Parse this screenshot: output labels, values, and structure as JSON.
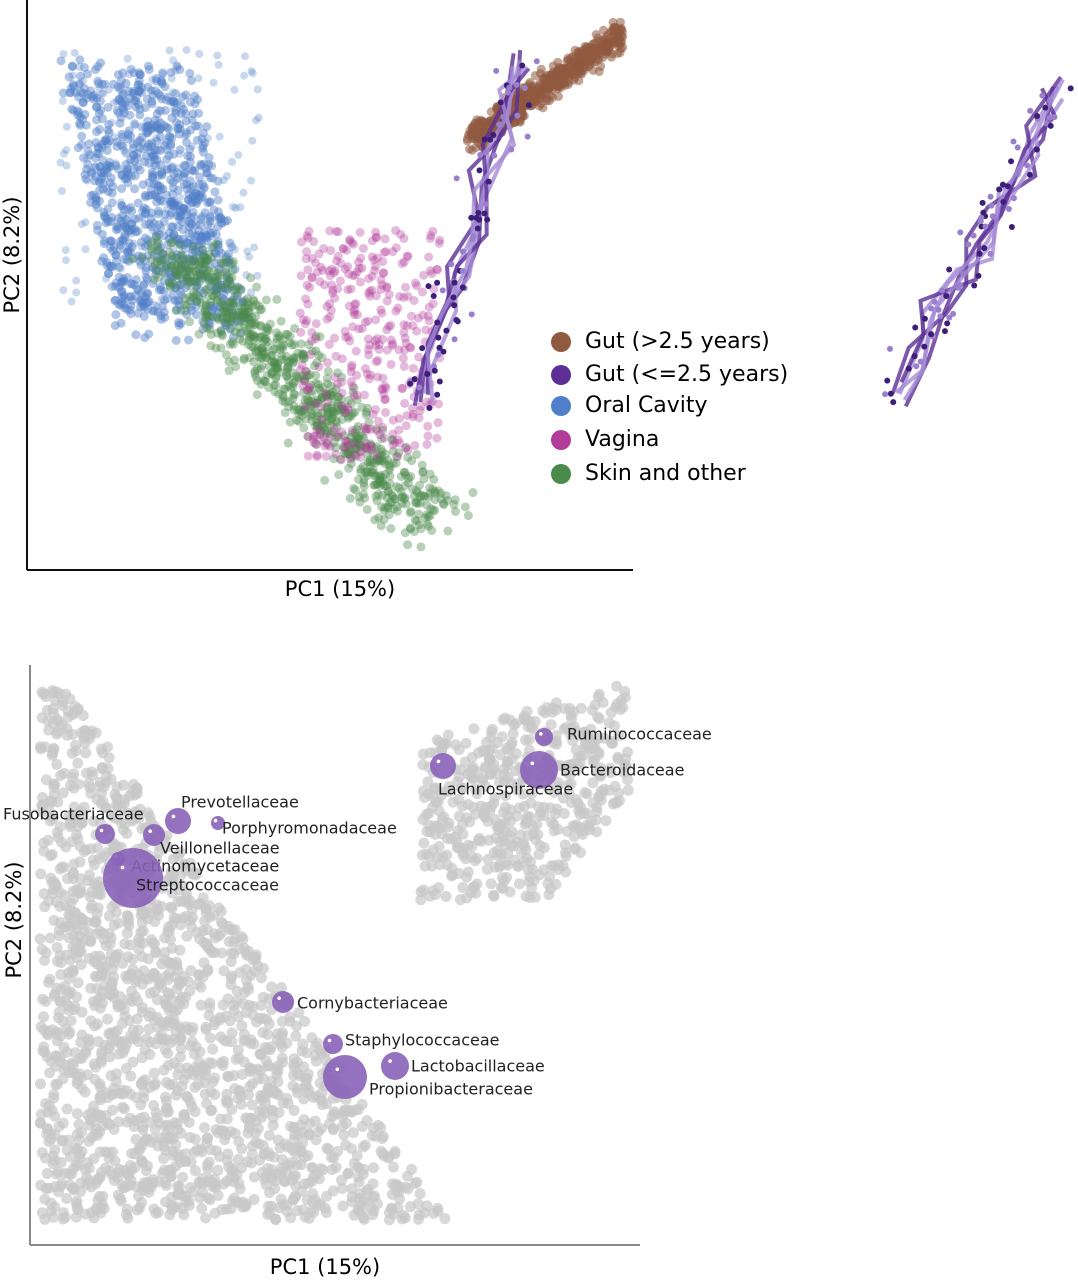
{
  "chart_data": [
    {
      "type": "scatter",
      "x_label": "PC1 (15%)",
      "y_label": "PC2 (8.2%)",
      "series": [
        {
          "name": "Gut (>2.5 years)",
          "color": "#8f5a3f"
        },
        {
          "name": "Gut (<=2.5 years)",
          "color": "#5b2f96"
        },
        {
          "name": "Oral Cavity",
          "color": "#4f7fc8"
        },
        {
          "name": "Vagina",
          "color": "#b23c9a"
        },
        {
          "name": "Skin and other",
          "color": "#4a8a4a"
        }
      ]
    },
    {
      "type": "bubble",
      "x_label": "PC1 (15%)",
      "y_label": "PC2 (8.2%)",
      "color": "#8a63b8",
      "labels": [
        "Ruminococcaceae",
        "Bacteroidaceae",
        "Lachnospiraceae",
        "Prevotellaceae",
        "Fusobacteriaceae",
        "Porphyromonadaceae",
        "Veillonellaceae",
        "Actinomycetaceae",
        "Streptococcaceae",
        "Cornybacteriaceae",
        "Staphylococcaceae",
        "Lactobacillaceae",
        "Propionibacteraceae"
      ]
    }
  ]
}
